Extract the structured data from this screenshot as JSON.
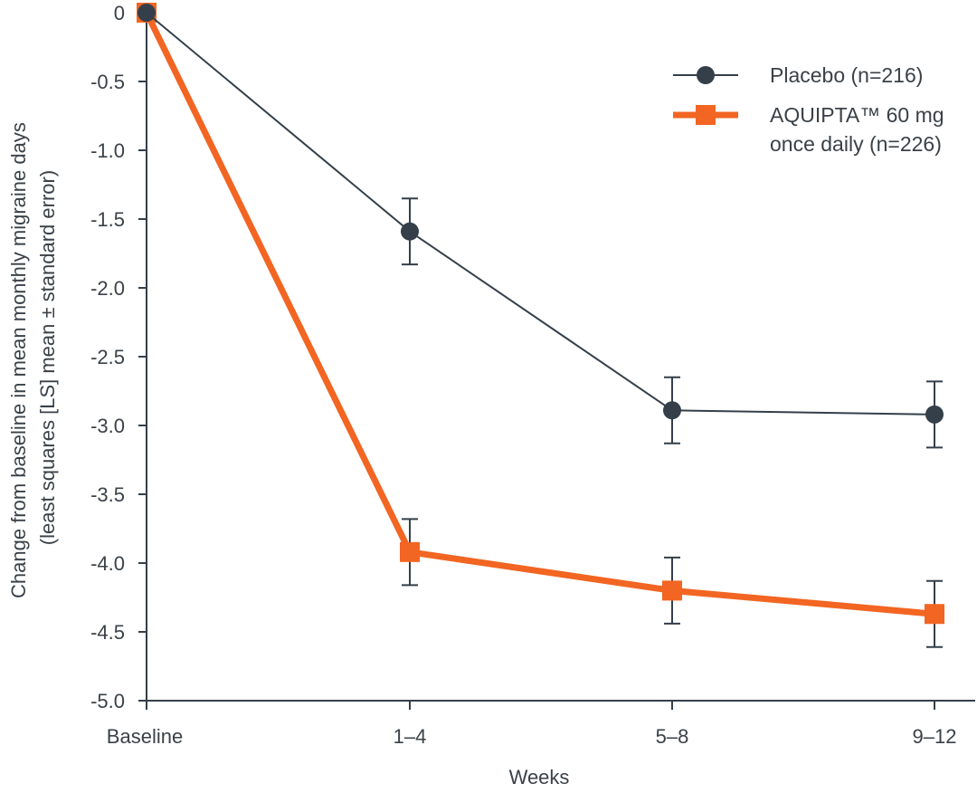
{
  "chart_data": {
    "type": "line",
    "title": "",
    "xlabel": "Weeks",
    "ylabel_lines": [
      "Change from baseline in mean monthly migraine days",
      "(least squares [LS] mean ± standard error)"
    ],
    "categories": [
      "Baseline",
      "1–4",
      "5–8",
      "9–12"
    ],
    "ylim": [
      -5.0,
      0
    ],
    "yticks": [
      "0",
      "-0.5",
      "-1.0",
      "-1.5",
      "-2.0",
      "-2.5",
      "-3.0",
      "-3.5",
      "-4.0",
      "-4.5",
      "-5.0"
    ],
    "ytick_values": [
      0,
      -0.5,
      -1.0,
      -1.5,
      -2.0,
      -2.5,
      -3.0,
      -3.5,
      -4.0,
      -4.5,
      -5.0
    ],
    "grid": false,
    "legend_position": "top-right",
    "series": [
      {
        "name": "Placebo (n=216)",
        "marker": "circle",
        "color": "#343f4a",
        "values": [
          0,
          -1.59,
          -2.89,
          -2.92
        ],
        "error": [
          0,
          0.24,
          0.24,
          0.24
        ]
      },
      {
        "name_lines": [
          "AQUIPTA™ 60 mg",
          "once daily (n=226)"
        ],
        "marker": "square",
        "color": "#f26522",
        "values": [
          0,
          -3.92,
          -4.2,
          -4.37
        ],
        "error": [
          0,
          0.24,
          0.24,
          0.24
        ]
      }
    ]
  }
}
